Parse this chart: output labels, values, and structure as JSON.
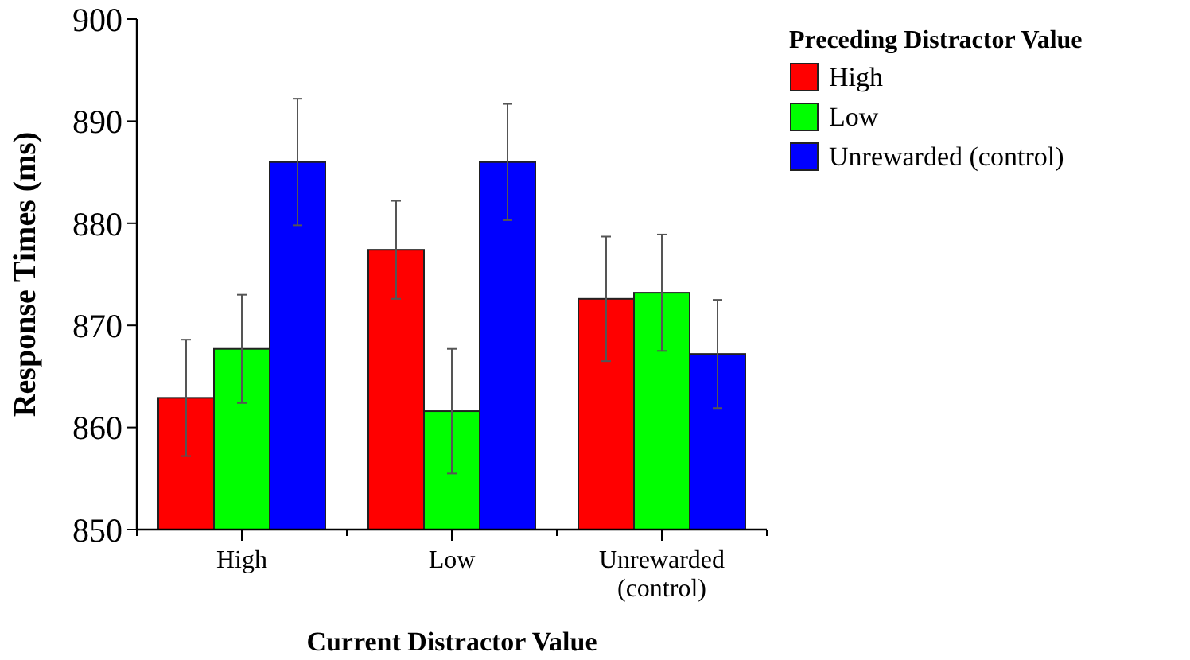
{
  "chart_data": {
    "type": "bar",
    "xlabel": "Current Distractor Value",
    "ylabel": "Response Times (ms)",
    "legend_title": "Preceding Distractor Value",
    "categories": [
      "High",
      "Low",
      "Unrewarded (control)"
    ],
    "series": [
      {
        "name": "High",
        "color": "#ff0000",
        "values": [
          862.9,
          877.4,
          872.6
        ],
        "errors": [
          5.7,
          4.8,
          6.1
        ]
      },
      {
        "name": "Low",
        "color": "#00ff00",
        "values": [
          867.7,
          861.6,
          873.2
        ],
        "errors": [
          5.3,
          6.1,
          5.7
        ]
      },
      {
        "name": "Unrewarded (control)",
        "color": "#0000ff",
        "values": [
          886.0,
          886.0,
          867.2
        ],
        "errors": [
          6.2,
          5.7,
          5.3
        ]
      }
    ],
    "ylim": [
      850,
      900
    ],
    "yticks": [
      850,
      860,
      870,
      880,
      890,
      900
    ],
    "grid": false,
    "legend": "top right"
  }
}
